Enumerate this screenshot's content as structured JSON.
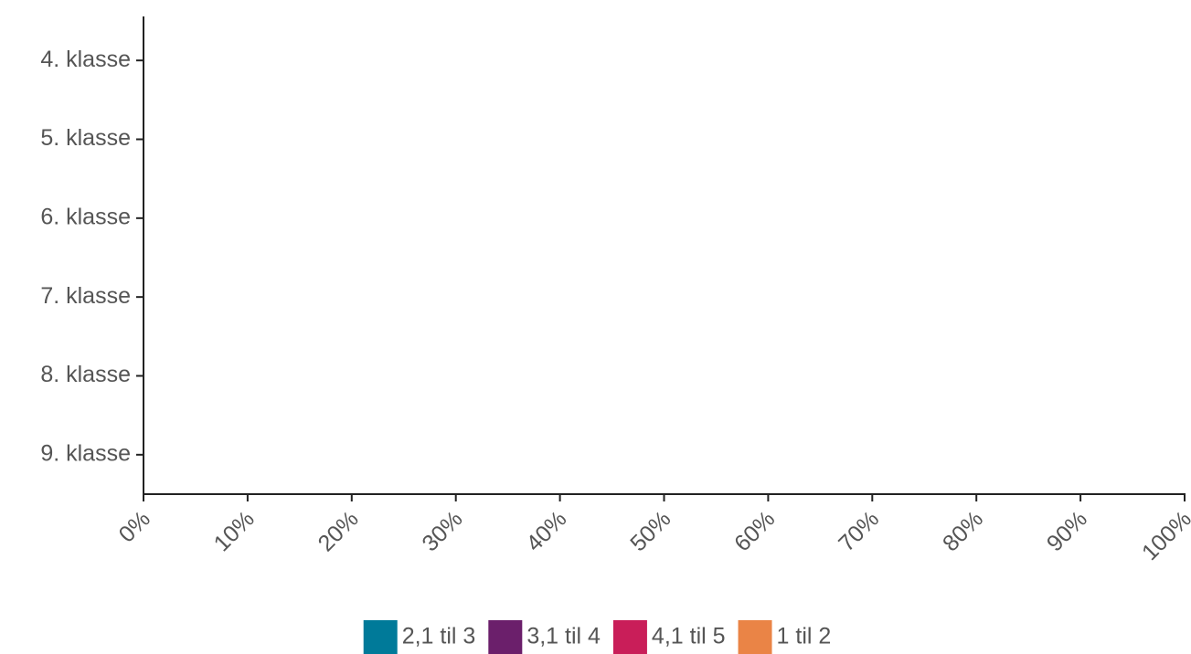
{
  "chart_data": {
    "type": "stacked_barh",
    "categories": [
      "4. klasse",
      "5. klasse",
      "6. klasse",
      "7. klasse",
      "8. klasse",
      "9. klasse"
    ],
    "series": [
      {
        "name": "2,1 til 3",
        "color": "#007a99",
        "values": [
          null,
          null,
          null,
          null,
          null,
          null
        ]
      },
      {
        "name": "3,1 til 4",
        "color": "#6b1f6b",
        "values": [
          null,
          null,
          null,
          null,
          null,
          null
        ]
      },
      {
        "name": "4,1 til 5",
        "color": "#c91e59",
        "values": [
          null,
          null,
          null,
          null,
          null,
          null
        ]
      },
      {
        "name": "1 til 2",
        "color": "#ea8446",
        "values": [
          null,
          null,
          null,
          null,
          null,
          null
        ]
      }
    ],
    "xlim": [
      0,
      100
    ],
    "xticks": [
      {
        "value": 0,
        "label": "0%"
      },
      {
        "value": 10,
        "label": "10%"
      },
      {
        "value": 20,
        "label": "20%"
      },
      {
        "value": 30,
        "label": "30%"
      },
      {
        "value": 40,
        "label": "40%"
      },
      {
        "value": 50,
        "label": "50%"
      },
      {
        "value": 60,
        "label": "60%"
      },
      {
        "value": 70,
        "label": "70%"
      },
      {
        "value": 80,
        "label": "80%"
      },
      {
        "value": 90,
        "label": "90%"
      },
      {
        "value": 100,
        "label": "100%"
      }
    ],
    "legend": "bottom"
  }
}
